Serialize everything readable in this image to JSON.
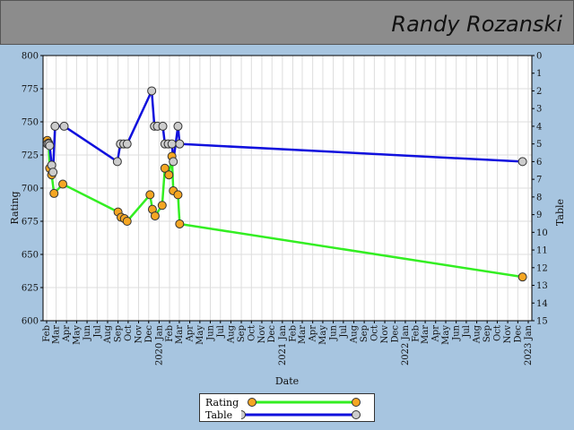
{
  "header": {
    "name": "Randy Rozanski"
  },
  "chart_data": {
    "type": "line",
    "xlabel": "Date",
    "ylabel": "Rating",
    "y2label": "Table",
    "ylim": [
      600,
      800
    ],
    "y2lim": [
      0,
      15
    ],
    "y2_inverted": true,
    "yticks": [
      600,
      625,
      650,
      675,
      700,
      725,
      750,
      775,
      800
    ],
    "y2ticks": [
      0,
      1,
      2,
      3,
      4,
      5,
      6,
      7,
      8,
      9,
      10,
      11,
      12,
      13,
      14,
      15
    ],
    "grid": true,
    "legend_position": "bottom-center",
    "colors": {
      "Rating": "#33ee22",
      "Table": "#1010dd",
      "rating_marker": "#f5a623",
      "table_marker": "#cccccc"
    },
    "xticks": [
      {
        "date": "2019-02",
        "label": "Feb"
      },
      {
        "date": "2019-03",
        "label": "Mar"
      },
      {
        "date": "2019-04",
        "label": "Apr"
      },
      {
        "date": "2019-05",
        "label": "May"
      },
      {
        "date": "2019-06",
        "label": "Jun"
      },
      {
        "date": "2019-07",
        "label": "Jul"
      },
      {
        "date": "2019-08",
        "label": "Aug"
      },
      {
        "date": "2019-09",
        "label": "Sep"
      },
      {
        "date": "2019-10",
        "label": "Oct"
      },
      {
        "date": "2019-11",
        "label": "Nov"
      },
      {
        "date": "2019-12",
        "label": "Dec"
      },
      {
        "date": "2020-01",
        "label": "2020 Jan"
      },
      {
        "date": "2020-02",
        "label": "Feb"
      },
      {
        "date": "2020-03",
        "label": "Mar"
      },
      {
        "date": "2020-04",
        "label": "Apr"
      },
      {
        "date": "2020-05",
        "label": "May"
      },
      {
        "date": "2020-06",
        "label": "Jun"
      },
      {
        "date": "2020-07",
        "label": "Jul"
      },
      {
        "date": "2020-08",
        "label": "Aug"
      },
      {
        "date": "2020-09",
        "label": "Sep"
      },
      {
        "date": "2020-10",
        "label": "Oct"
      },
      {
        "date": "2020-11",
        "label": "Nov"
      },
      {
        "date": "2020-12",
        "label": "Dec"
      },
      {
        "date": "2021-01",
        "label": "2021 Jan"
      },
      {
        "date": "2021-02",
        "label": "Feb"
      },
      {
        "date": "2021-03",
        "label": "Mar"
      },
      {
        "date": "2021-04",
        "label": "Apr"
      },
      {
        "date": "2021-05",
        "label": "May"
      },
      {
        "date": "2021-06",
        "label": "Jun"
      },
      {
        "date": "2021-07",
        "label": "Jul"
      },
      {
        "date": "2021-08",
        "label": "Aug"
      },
      {
        "date": "2021-09",
        "label": "Sep"
      },
      {
        "date": "2021-10",
        "label": "Oct"
      },
      {
        "date": "2021-11",
        "label": "Nov"
      },
      {
        "date": "2021-12",
        "label": "Dec"
      },
      {
        "date": "2022-01",
        "label": "2022 Jan"
      },
      {
        "date": "2022-02",
        "label": "Feb"
      },
      {
        "date": "2022-03",
        "label": "Mar"
      },
      {
        "date": "2022-04",
        "label": "Apr"
      },
      {
        "date": "2022-05",
        "label": "May"
      },
      {
        "date": "2022-06",
        "label": "Jun"
      },
      {
        "date": "2022-07",
        "label": "Jul"
      },
      {
        "date": "2022-08",
        "label": "Aug"
      },
      {
        "date": "2022-09",
        "label": "Sep"
      },
      {
        "date": "2022-10",
        "label": "Oct"
      },
      {
        "date": "2022-11",
        "label": "Nov"
      },
      {
        "date": "2022-12",
        "label": "Dec"
      },
      {
        "date": "2023-01",
        "label": "2023 Jan"
      }
    ],
    "series": [
      {
        "name": "Rating",
        "axis": "left",
        "points": [
          [
            "2019-02-03",
            736
          ],
          [
            "2019-02-07",
            734
          ],
          [
            "2019-02-10",
            715
          ],
          [
            "2019-02-16",
            710
          ],
          [
            "2019-02-23",
            696
          ],
          [
            "2019-03-21",
            703
          ],
          [
            "2019-09-01",
            682
          ],
          [
            "2019-09-10",
            678
          ],
          [
            "2019-09-20",
            677
          ],
          [
            "2019-09-28",
            675
          ],
          [
            "2019-12-05",
            695
          ],
          [
            "2019-12-12",
            684
          ],
          [
            "2019-12-20",
            679
          ],
          [
            "2020-01-10",
            687
          ],
          [
            "2020-01-18",
            715
          ],
          [
            "2020-01-30",
            710
          ],
          [
            "2020-02-08",
            724
          ],
          [
            "2020-02-12",
            698
          ],
          [
            "2020-02-26",
            695
          ],
          [
            "2020-03-02",
            673
          ],
          [
            "2022-12-15",
            633
          ]
        ]
      },
      {
        "name": "Table",
        "axis": "right",
        "points": [
          [
            "2019-02-03",
            5.0
          ],
          [
            "2019-02-07",
            5.0
          ],
          [
            "2019-02-10",
            5.1
          ],
          [
            "2019-02-16",
            6.2
          ],
          [
            "2019-02-20",
            6.6
          ],
          [
            "2019-02-26",
            4.0
          ],
          [
            "2019-03-25",
            4.0
          ],
          [
            "2019-08-30",
            6.0
          ],
          [
            "2019-09-08",
            5.0
          ],
          [
            "2019-09-18",
            5.0
          ],
          [
            "2019-09-28",
            5.0
          ],
          [
            "2019-12-10",
            2.0
          ],
          [
            "2019-12-18",
            4.0
          ],
          [
            "2019-12-27",
            4.0
          ],
          [
            "2020-01-12",
            4.0
          ],
          [
            "2020-01-18",
            5.0
          ],
          [
            "2020-01-28",
            5.0
          ],
          [
            "2020-02-08",
            5.0
          ],
          [
            "2020-02-12",
            6.0
          ],
          [
            "2020-02-26",
            4.0
          ],
          [
            "2020-03-02",
            5.0
          ],
          [
            "2022-12-15",
            6.0
          ]
        ]
      }
    ]
  }
}
